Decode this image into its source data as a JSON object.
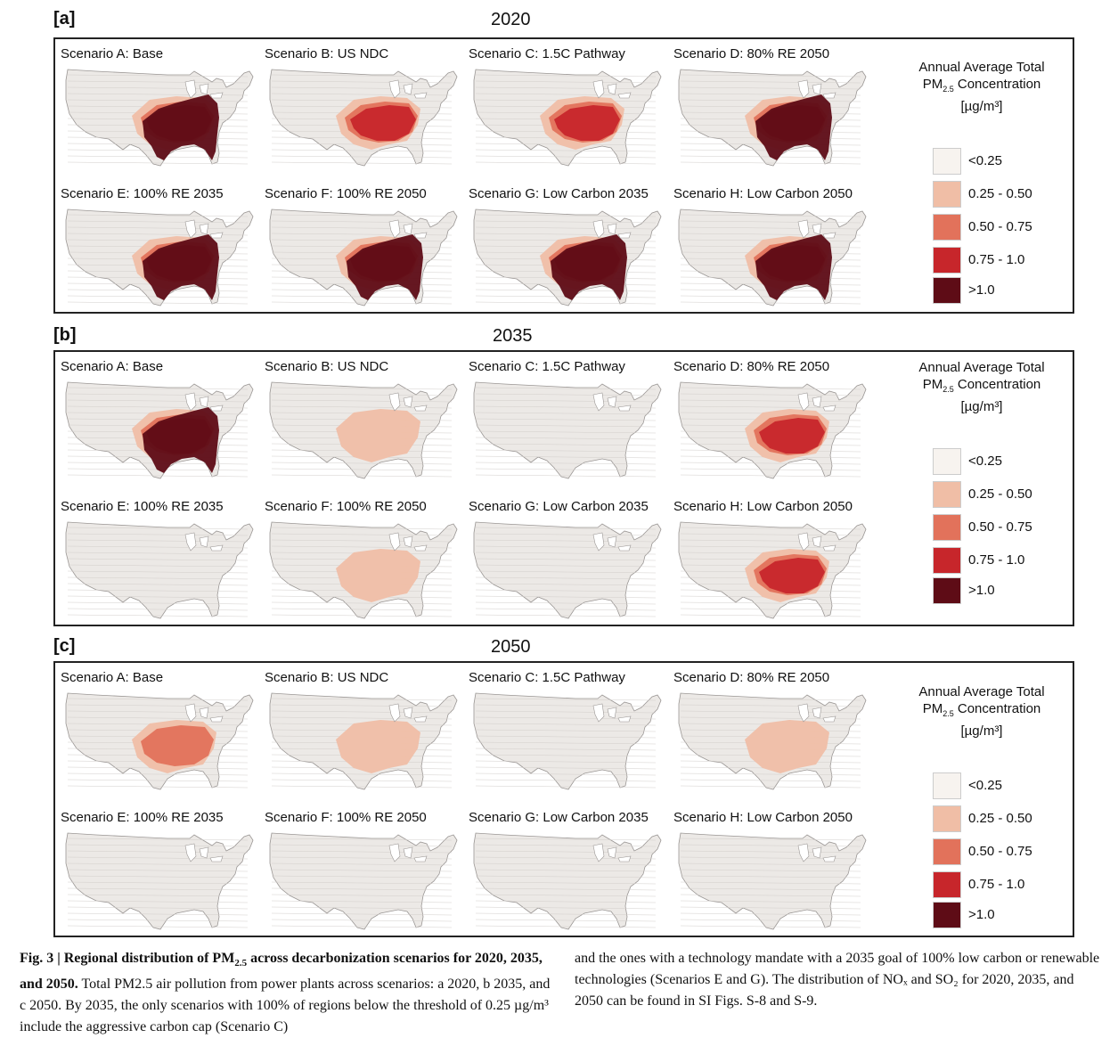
{
  "colors": {
    "lt025": "#f7f3ef",
    "c025_050": "#f0bea6",
    "c050_075": "#e2725b",
    "c075_10": "#c7262b",
    "gt10": "#5e0c16"
  },
  "legend": {
    "title_line1": "Annual Average Total",
    "title_pm": "PM",
    "title_sub": "2.5",
    "title_line2_rest": " Concentration",
    "title_line3": "[µg/m³]",
    "items": [
      {
        "label": "<0.25",
        "color": "#f7f3ef"
      },
      {
        "label": "0.25 - 0.50",
        "color": "#f0bea6"
      },
      {
        "label": "0.50 - 0.75",
        "color": "#e2725b"
      },
      {
        "label": "0.75 - 1.0",
        "color": "#c7262b"
      },
      {
        "label": ">1.0",
        "color": "#5e0c16"
      }
    ]
  },
  "panels": [
    {
      "label": "[a]",
      "year": "2020",
      "maps": [
        {
          "title": "Scenario A: Base",
          "intensity": 4
        },
        {
          "title": "Scenario B: US NDC",
          "intensity": 3
        },
        {
          "title": "Scenario C: 1.5C Pathway",
          "intensity": 3
        },
        {
          "title": "Scenario D: 80% RE 2050",
          "intensity": 4
        },
        {
          "title": "Scenario E: 100% RE 2035",
          "intensity": 4
        },
        {
          "title": "Scenario F: 100% RE 2050",
          "intensity": 4
        },
        {
          "title": "Scenario G: Low Carbon 2035",
          "intensity": 4
        },
        {
          "title": "Scenario H: Low Carbon 2050",
          "intensity": 4
        }
      ]
    },
    {
      "label": "[b]",
      "year": "2035",
      "maps": [
        {
          "title": "Scenario A: Base",
          "intensity": 4
        },
        {
          "title": "Scenario B: US NDC",
          "intensity": 1
        },
        {
          "title": "Scenario C: 1.5C Pathway",
          "intensity": 0
        },
        {
          "title": "Scenario D: 80% RE 2050",
          "intensity": 3
        },
        {
          "title": "Scenario E: 100% RE 2035",
          "intensity": 0
        },
        {
          "title": "Scenario F: 100% RE 2050",
          "intensity": 1
        },
        {
          "title": "Scenario G: Low Carbon 2035",
          "intensity": 0
        },
        {
          "title": "Scenario H: Low Carbon 2050",
          "intensity": 3
        }
      ]
    },
    {
      "label": "[c]",
      "year": "2050",
      "maps": [
        {
          "title": "Scenario A: Base",
          "intensity": 2
        },
        {
          "title": "Scenario B: US NDC",
          "intensity": 1
        },
        {
          "title": "Scenario C: 1.5C Pathway",
          "intensity": 0
        },
        {
          "title": "Scenario D: 80% RE 2050",
          "intensity": 1
        },
        {
          "title": "Scenario E: 100% RE 2035",
          "intensity": 0
        },
        {
          "title": "Scenario F: 100% RE 2050",
          "intensity": 0
        },
        {
          "title": "Scenario G: Low Carbon 2035",
          "intensity": 0
        },
        {
          "title": "Scenario H: Low Carbon 2050",
          "intensity": 0
        }
      ]
    }
  ],
  "caption": {
    "fig_label": "Fig. 3 | Regional distribution of PM",
    "fig_sub": "2.5",
    "fig_bold_rest": " across decarbonization scenarios for 2020, 2035, and 2050.",
    "left_text": " Total PM2.5 air pollution from power plants across scenarios: a 2020, b 2035, and c 2050. By 2035, the only scenarios with 100% of regions below the threshold of 0.25 µg/m³ include the aggressive carbon cap (Scenario C)",
    "right_text": "and the ones with a technology mandate with a 2035 goal of 100% low carbon or renewable technologies (Scenarios E and G). The distribution of NOₓ and SO₂ for 2020, 2035, and 2050 can be found in SI Figs. S-8 and S-9."
  }
}
